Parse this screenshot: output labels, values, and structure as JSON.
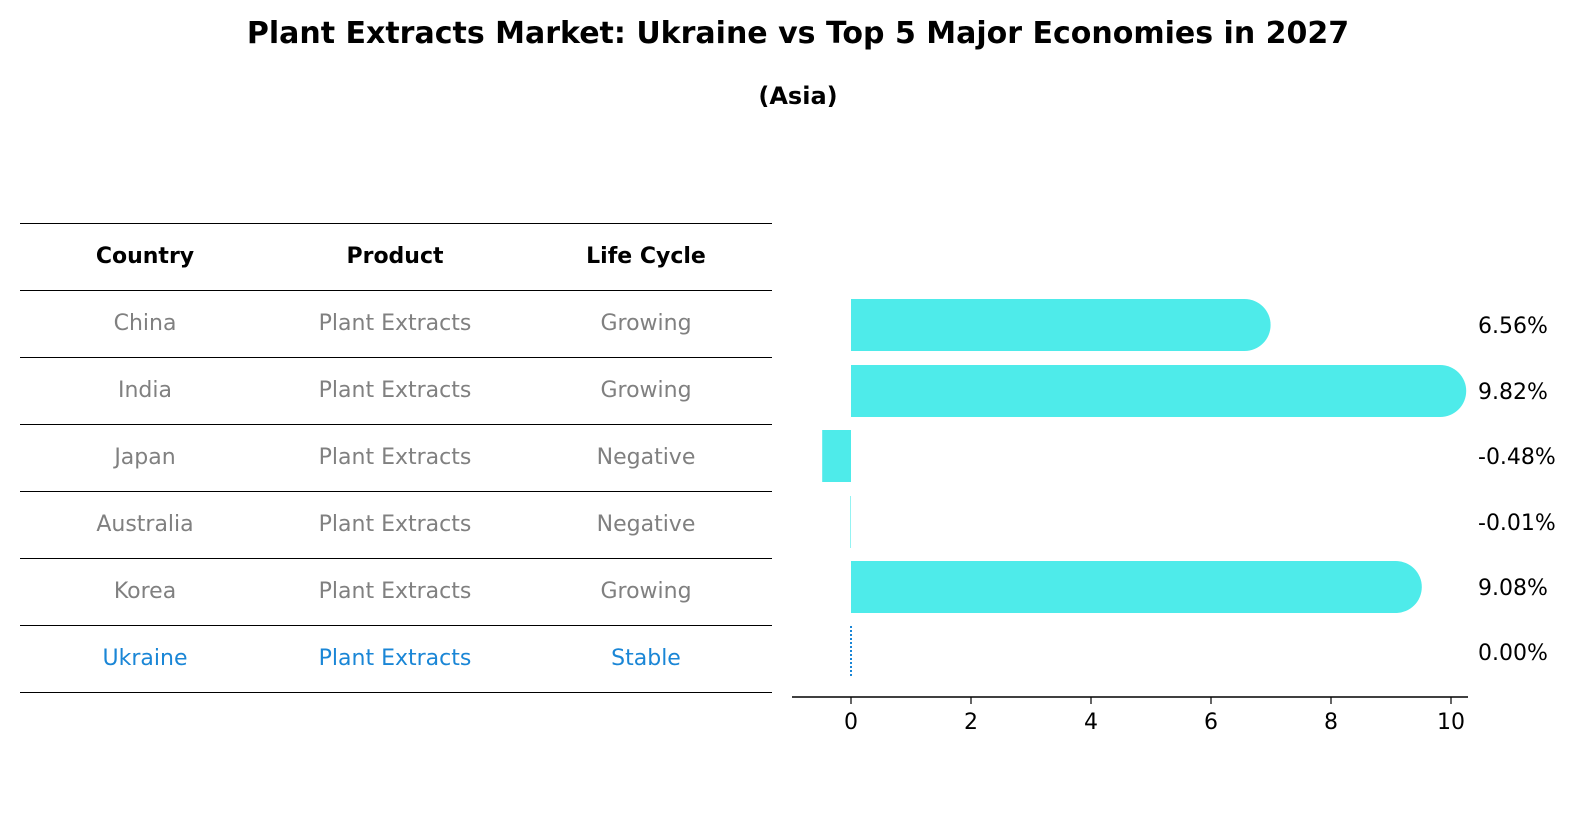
{
  "title": "Plant Extracts Market: Ukraine vs Top 5 Major Economies in 2027",
  "subtitle": "(Asia)",
  "table": {
    "headers": [
      "Country",
      "Product",
      "Life Cycle"
    ],
    "rows": [
      {
        "country": "China",
        "product": "Plant Extracts",
        "life_cycle": "Growing"
      },
      {
        "country": "India",
        "product": "Plant Extracts",
        "life_cycle": "Growing"
      },
      {
        "country": "Japan",
        "product": "Plant Extracts",
        "life_cycle": "Negative"
      },
      {
        "country": "Australia",
        "product": "Plant Extracts",
        "life_cycle": "Negative"
      },
      {
        "country": "Korea",
        "product": "Plant Extracts",
        "life_cycle": "Growing"
      },
      {
        "country": "Ukraine",
        "product": "Plant Extracts",
        "life_cycle": "Stable"
      }
    ]
  },
  "colors": {
    "bar": "#4eebea",
    "highlight": "#1a86d6",
    "muted": "#808080"
  },
  "chart_data": {
    "type": "bar",
    "orientation": "horizontal",
    "categories": [
      "China",
      "India",
      "Japan",
      "Australia",
      "Korea",
      "Ukraine"
    ],
    "values": [
      6.56,
      9.82,
      -0.48,
      -0.01,
      9.08,
      0.0
    ],
    "value_labels": [
      "6.56%",
      "9.82%",
      "-0.48%",
      "-0.01%",
      "9.08%",
      "0.00%"
    ],
    "xticks": [
      0,
      2,
      4,
      6,
      8,
      10
    ],
    "xlim": [
      -1,
      10.3
    ],
    "title": "Plant Extracts Market: Ukraine vs Top 5 Major Economies in 2027",
    "xlabel": "",
    "ylabel": "",
    "grid": false
  }
}
